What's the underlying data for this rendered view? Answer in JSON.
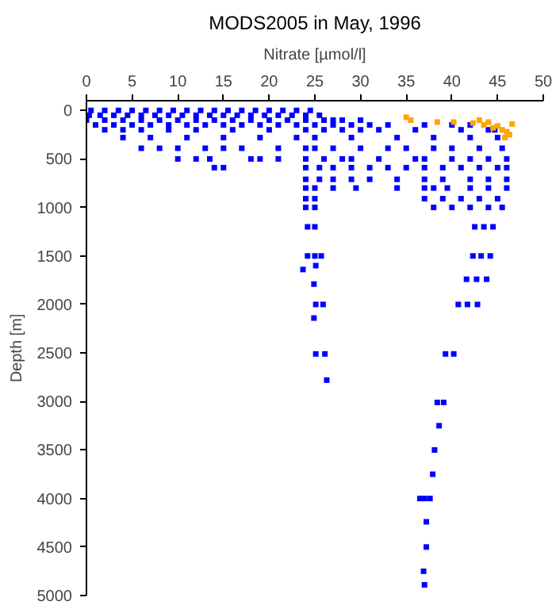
{
  "chart_data": {
    "type": "scatter",
    "title": "MODS2005 in May, 1996",
    "xlabel": "Nitrate [µmol/l]",
    "ylabel": "Depth [m]",
    "xlim": [
      0,
      50
    ],
    "xticks": [
      0,
      5,
      10,
      15,
      20,
      25,
      30,
      35,
      40,
      45,
      50
    ],
    "ylim": [
      5000,
      -100
    ],
    "yticks": [
      0,
      500,
      1000,
      1500,
      2000,
      2500,
      3000,
      3500,
      4000,
      4500,
      5000
    ],
    "grid": false,
    "marker": "square",
    "series": [
      {
        "color": "#0000ff",
        "x": [
          0.5,
          2,
          3.5,
          5,
          6.5,
          8,
          9.5,
          11,
          12.5,
          14,
          15.5,
          17,
          18.5,
          20,
          21.5,
          23,
          24.5,
          0.3,
          1.5,
          3,
          4.5,
          6,
          7.5,
          9,
          10.5,
          12,
          13.5,
          15,
          16.5,
          18,
          19.5,
          21,
          22.5,
          24,
          25.5,
          0,
          2,
          4,
          6,
          8,
          10,
          12,
          14,
          16,
          18,
          20,
          22,
          24,
          26,
          27,
          28,
          30,
          1,
          3,
          5,
          7,
          9,
          11,
          13,
          15,
          17,
          19,
          21,
          23,
          25,
          27,
          29,
          31,
          33,
          37,
          40,
          42,
          2,
          4,
          6,
          9,
          12,
          16,
          20,
          24,
          26,
          28,
          30,
          32,
          36,
          41,
          44,
          44.7,
          4,
          7,
          11,
          15,
          19,
          23,
          25,
          29,
          34,
          38,
          42,
          45,
          6,
          8,
          10,
          13,
          15,
          17,
          21,
          24,
          25,
          27,
          30,
          33,
          35,
          38,
          40,
          43,
          45.5,
          10,
          12,
          13.5,
          18,
          19,
          21,
          24,
          26,
          28,
          29,
          32,
          36,
          37,
          40,
          42,
          44,
          46,
          14,
          15,
          24,
          25.5,
          27,
          29,
          31,
          33,
          35,
          37,
          39,
          41,
          43,
          45,
          46,
          24,
          25.5,
          27,
          29,
          31,
          34,
          37,
          39,
          42,
          44,
          46,
          24,
          25,
          27,
          29.5,
          34,
          37,
          38,
          39.5,
          42,
          44,
          46,
          24,
          25,
          37,
          39,
          41,
          43,
          45,
          24,
          25,
          38,
          40,
          42,
          44,
          45.5,
          24.2,
          25,
          42.5,
          43.5,
          44.5,
          24.2,
          25,
          25.7,
          42.3,
          43.2,
          44.2,
          25.1,
          23.7,
          41.6,
          42.7,
          43.8,
          24.9,
          25.1,
          25.9,
          40.7,
          41.7,
          42.8,
          24.9,
          25.1,
          26.1,
          39.3,
          40.2,
          26.3,
          38.4,
          39.1,
          38.6,
          38.1,
          37.9,
          36.5,
          37.0,
          37.6,
          37.2,
          37.2,
          36.9,
          37.0
        ],
        "values": [
          0,
          0,
          0,
          0,
          0,
          0,
          0,
          0,
          0,
          0,
          0,
          0,
          0,
          0,
          0,
          0,
          0,
          50,
          50,
          50,
          50,
          50,
          50,
          50,
          50,
          50,
          50,
          50,
          50,
          50,
          50,
          50,
          50,
          50,
          50,
          100,
          100,
          100,
          100,
          100,
          100,
          100,
          100,
          100,
          100,
          100,
          100,
          100,
          100,
          100,
          100,
          100,
          150,
          150,
          150,
          150,
          150,
          150,
          150,
          150,
          150,
          150,
          150,
          150,
          150,
          150,
          150,
          150,
          150,
          150,
          150,
          150,
          200,
          200,
          200,
          200,
          200,
          200,
          200,
          200,
          200,
          200,
          200,
          200,
          200,
          200,
          200,
          200,
          280,
          280,
          280,
          280,
          280,
          280,
          280,
          280,
          280,
          280,
          280,
          280,
          390,
          390,
          390,
          390,
          390,
          390,
          390,
          390,
          390,
          390,
          390,
          390,
          390,
          390,
          390,
          390,
          390,
          500,
          500,
          500,
          500,
          500,
          500,
          500,
          500,
          500,
          500,
          500,
          500,
          500,
          500,
          500,
          500,
          500,
          590,
          590,
          590,
          590,
          590,
          590,
          590,
          590,
          590,
          590,
          590,
          590,
          590,
          590,
          590,
          710,
          710,
          710,
          710,
          710,
          710,
          710,
          710,
          710,
          710,
          710,
          800,
          800,
          800,
          800,
          800,
          800,
          800,
          800,
          800,
          800,
          800,
          910,
          910,
          910,
          910,
          910,
          910,
          910,
          1000,
          1000,
          1000,
          1000,
          1000,
          1000,
          1000,
          1200,
          1200,
          1200,
          1200,
          1200,
          1500,
          1500,
          1500,
          1500,
          1500,
          1500,
          1600,
          1640,
          1740,
          1740,
          1740,
          1790,
          2000,
          2000,
          2000,
          2000,
          2000,
          2140,
          2510,
          2510,
          2510,
          2510,
          2780,
          3010,
          3010,
          3250,
          3500,
          3750,
          4000,
          4000,
          4000,
          4240,
          4500,
          4750,
          4890
        ]
      },
      {
        "color": "#ffa500",
        "x": [
          35.0,
          35.5,
          38.4,
          40.2,
          42.3,
          43,
          43.5,
          44,
          44.5,
          45,
          45.5,
          46,
          46.3,
          46.6,
          45.8
        ],
        "values": [
          70,
          100,
          120,
          120,
          130,
          100,
          150,
          120,
          180,
          160,
          200,
          220,
          250,
          140,
          280
        ]
      }
    ]
  }
}
